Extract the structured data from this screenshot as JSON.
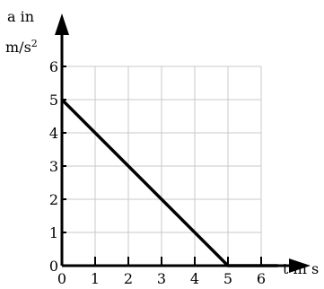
{
  "chart_data": {
    "type": "line",
    "title": "",
    "xlabel": "t in s",
    "ylabel_line1": "a in",
    "ylabel_line2_base": "m/s",
    "ylabel_line2_sup": "2",
    "xlim": [
      0,
      6
    ],
    "ylim": [
      0,
      6
    ],
    "x_ticks": [
      "0",
      "1",
      "2",
      "3",
      "4",
      "5",
      "6"
    ],
    "y_ticks": [
      "0",
      "1",
      "2",
      "3",
      "4",
      "5",
      "6"
    ],
    "grid": true,
    "series": [
      {
        "x": [
          0,
          5,
          6.5
        ],
        "y": [
          5,
          0,
          0
        ]
      }
    ]
  }
}
